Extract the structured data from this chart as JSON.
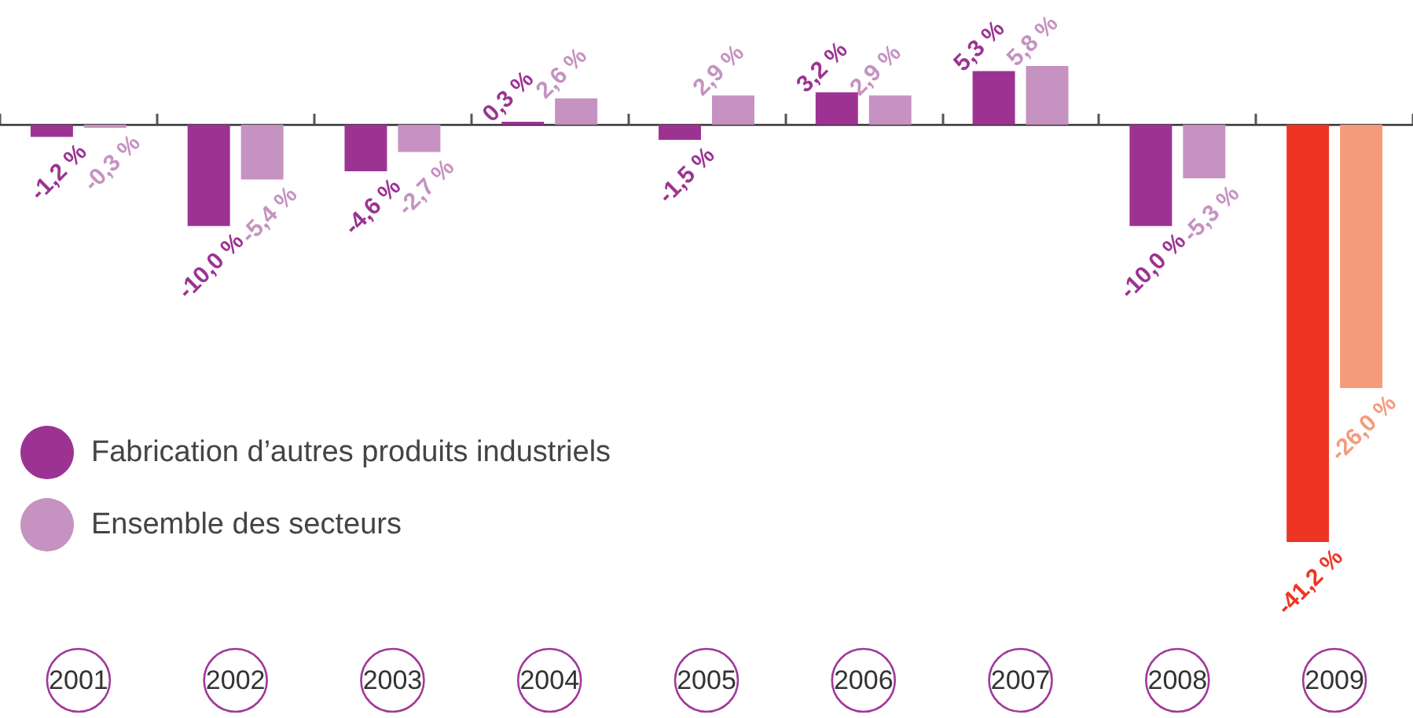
{
  "chart_data": {
    "type": "bar",
    "categories": [
      "2001",
      "2002",
      "2003",
      "2004",
      "2005",
      "2006",
      "2007",
      "2008",
      "2009"
    ],
    "series": [
      {
        "name": "Fabrication d’autres produits industriels",
        "color": "#9c3393",
        "colors": [
          "#9c3393",
          "#9c3393",
          "#9c3393",
          "#9c3393",
          "#9c3393",
          "#9c3393",
          "#9c3393",
          "#9c3393",
          "#ee3524"
        ],
        "values": [
          -1.2,
          -10.0,
          -4.6,
          0.3,
          -1.5,
          3.2,
          5.3,
          -10.0,
          -41.2
        ],
        "value_labels": [
          "-1,2 %",
          "-10,0 %",
          "-4,6 %",
          "0,3 %",
          "-1,5 %",
          "3,2 %",
          "5,3 %",
          "-10,0 %",
          "-41,2 %"
        ]
      },
      {
        "name": "Ensemble des secteurs",
        "color": "#c592c2",
        "colors": [
          "#c592c2",
          "#c592c2",
          "#c592c2",
          "#c592c2",
          "#c592c2",
          "#c592c2",
          "#c592c2",
          "#c592c2",
          "#f59b7c"
        ],
        "values": [
          -0.3,
          -5.4,
          -2.7,
          2.6,
          2.9,
          2.9,
          5.8,
          -5.3,
          -26.0
        ],
        "value_labels": [
          "-0,3 %",
          "-5,4 %",
          "-2,7 %",
          "2,6 %",
          "2,9 %",
          "2,9 %",
          "5,8 %",
          "-5,3 %",
          "-26,0 %"
        ]
      }
    ],
    "legend": "bottom left",
    "grid": false
  }
}
